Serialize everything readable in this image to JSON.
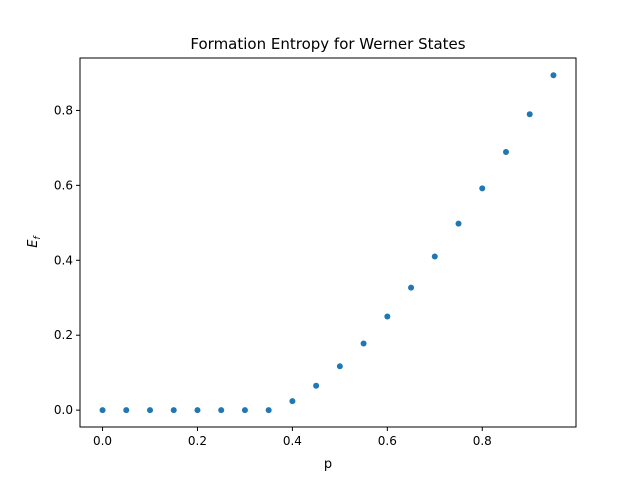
{
  "chart_data": {
    "type": "scatter",
    "title": "Formation Entropy for Werner States",
    "xlabel": "p",
    "ylabel_main": "E",
    "ylabel_sub": "f",
    "xlim": [
      -0.0475,
      0.9975
    ],
    "ylim": [
      -0.045,
      0.94
    ],
    "xticks": [
      0.0,
      0.2,
      0.4,
      0.6,
      0.8
    ],
    "xtick_labels": [
      "0.0",
      "0.2",
      "0.4",
      "0.6",
      "0.8"
    ],
    "yticks": [
      0.0,
      0.2,
      0.4,
      0.6,
      0.8
    ],
    "ytick_labels": [
      "0.0",
      "0.2",
      "0.4",
      "0.6",
      "0.8"
    ],
    "grid": false,
    "marker_color": "#1f77b4",
    "series": [
      {
        "x": [
          0.0,
          0.05,
          0.1,
          0.15,
          0.2,
          0.25,
          0.3,
          0.35,
          0.4,
          0.45,
          0.5,
          0.55,
          0.6,
          0.65,
          0.7,
          0.75,
          0.8,
          0.85,
          0.9,
          0.95
        ],
        "y": [
          0.0,
          0.0,
          0.0,
          0.0,
          0.0,
          0.0,
          0.0,
          0.0,
          0.024,
          0.065,
          0.117,
          0.178,
          0.25,
          0.327,
          0.41,
          0.498,
          0.592,
          0.689,
          0.79,
          0.894
        ]
      }
    ]
  }
}
